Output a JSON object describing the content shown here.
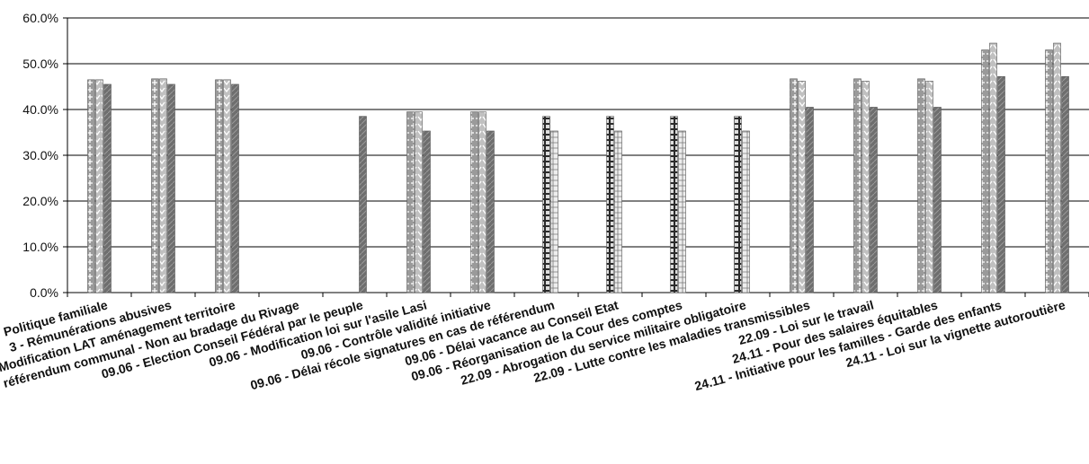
{
  "chart_data": {
    "type": "bar",
    "title": "",
    "xlabel": "",
    "ylabel": "",
    "ylim": [
      0,
      60
    ],
    "y_ticks": [
      "0.0%",
      "10.0%",
      "20.0%",
      "30.0%",
      "40.0%",
      "50.0%",
      "60.0%"
    ],
    "y_tick_values": [
      0,
      10,
      20,
      30,
      40,
      50,
      60
    ],
    "grid": true,
    "legend": "none",
    "categories": [
      "Politique familiale",
      "3 - Rémunérations abusives",
      "Modification LAT aménagement territoire",
      "référendum communal - Non au bradage du Rivage",
      "09.06 - Election Conseil Fédéral par le peuple",
      "09.06 - Modification loi sur l'asile Lasi",
      "09.06 - Contrôle validité initiative",
      "09.06 - Délai récole signatures en cas de référendum",
      "09.06 - Délai vacance au Conseil Etat",
      "09.06 - Réorganisation de  la Cour des comptes",
      "22.09 - Abrogation du service militaire obligatoire",
      "22.09 - Lutte contre les maladies transmissibles",
      "22.09 - Loi sur le travail",
      "24.11 - Pour des salaires équitables",
      "24.11 - Initiative pour les familles - Garde des enfants",
      "24.11 - Loi sur la vignette autoroutière"
    ],
    "series": [
      {
        "values": [
          46.5,
          46.7,
          46.5,
          null,
          null,
          39.5,
          39.5,
          null,
          null,
          null,
          null,
          46.7,
          46.7,
          46.7,
          53.0,
          53.0
        ]
      },
      {
        "values": [
          46.5,
          46.7,
          46.5,
          null,
          null,
          39.5,
          39.5,
          38.5,
          38.5,
          38.5,
          38.5,
          46.2,
          46.2,
          46.2,
          54.5,
          54.5
        ]
      },
      {
        "values": [
          45.5,
          45.5,
          45.5,
          null,
          38.5,
          35.3,
          35.3,
          35.3,
          35.3,
          35.3,
          35.3,
          40.5,
          40.5,
          40.5,
          47.2,
          47.2
        ]
      }
    ],
    "colors": [
      "#9a9a9a",
      "#b4b4b4",
      "#6e6e6e"
    ]
  }
}
